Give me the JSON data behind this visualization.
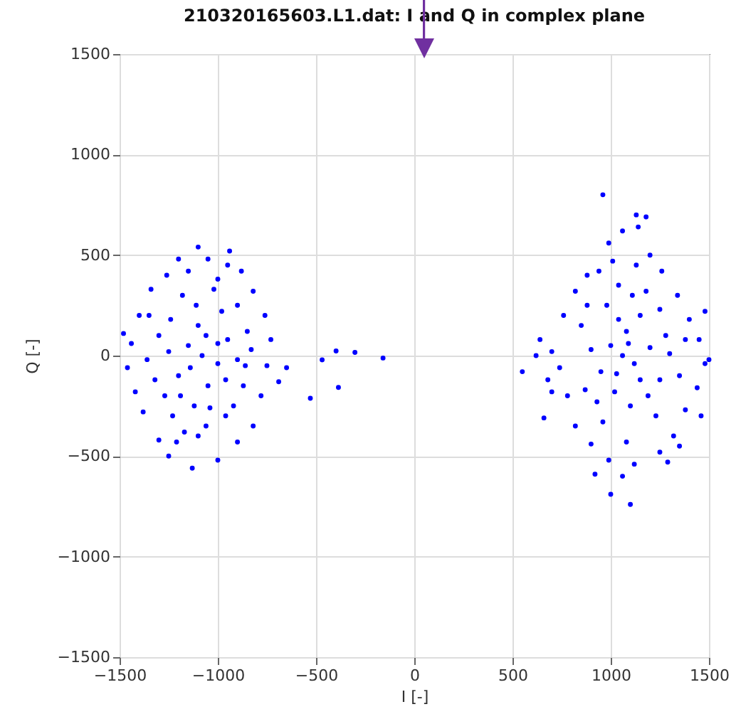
{
  "chart_data": {
    "type": "scatter",
    "title": "210320165603.L1.dat: I and Q in complex plane",
    "xlabel": "I [-]",
    "ylabel": "Q [-]",
    "xlim": [
      -1500,
      1500
    ],
    "xticks": [
      -1500,
      -1000,
      -500,
      0,
      500,
      1000,
      1500
    ],
    "ylim": [
      -1500,
      1500
    ],
    "yticks": [
      -1500,
      -1000,
      -500,
      0,
      500,
      1000,
      1500
    ],
    "grid": true,
    "marker": "circle",
    "series": [
      {
        "color": "#0000ff",
        "x": [
          -1080,
          -1150,
          -1000,
          -1200,
          -950,
          -1100,
          -1050,
          -1250,
          -900,
          -1120,
          -980,
          -1300,
          -1320,
          -850,
          -870,
          -1180,
          -1020,
          -1230,
          -960,
          -1100,
          -1150,
          -1050,
          -1200,
          -1260,
          -1340,
          -1400,
          -1440,
          -1460,
          -1420,
          -1380,
          -1300,
          -1250,
          -1130,
          -1000,
          -900,
          -820,
          -780,
          -750,
          -730,
          -760,
          -820,
          -880,
          -950,
          -900,
          -830,
          -1480,
          -1360,
          -1350,
          -1060,
          -1000,
          -1140,
          -1040,
          -1190,
          -1270,
          -1240,
          -960,
          -1110,
          -920,
          -860,
          -1000,
          -1060,
          -1170,
          -1210,
          -940,
          -1100,
          -469,
          -398,
          -302,
          -159,
          -386,
          -529,
          -650,
          -690,
          1060,
          1000,
          1120,
          1080,
          950,
          1150,
          1020,
          1200,
          900,
          1100,
          980,
          1250,
          1280,
          870,
          850,
          1180,
          1040,
          1230,
          960,
          1080,
          1130,
          1010,
          1200,
          1260,
          1340,
          1400,
          1450,
          1480,
          1440,
          1380,
          1320,
          1250,
          1120,
          990,
          900,
          820,
          780,
          740,
          700,
          640,
          620,
          680,
          760,
          820,
          880,
          940,
          990,
          1060,
          1140,
          1180,
          1130,
          960,
          1000,
          1100,
          550,
          660,
          700,
          1480,
          1500,
          1460,
          1350,
          1290,
          1060,
          920,
          1300,
          1350,
          1380,
          1150,
          1030,
          1090,
          1190,
          930,
          880,
          1040,
          1250,
          1110
        ],
        "values": [
          0,
          50,
          -40,
          -100,
          80,
          150,
          -150,
          20,
          -20,
          -250,
          220,
          100,
          -120,
          120,
          -150,
          300,
          330,
          -300,
          -300,
          -400,
          420,
          480,
          480,
          400,
          330,
          200,
          60,
          -60,
          -180,
          -280,
          -420,
          -500,
          -560,
          -520,
          -430,
          -350,
          -200,
          -50,
          80,
          200,
          320,
          420,
          450,
          250,
          30,
          110,
          -20,
          200,
          100,
          60,
          -60,
          -260,
          -200,
          -200,
          180,
          -120,
          250,
          -250,
          -50,
          380,
          -350,
          -380,
          -430,
          520,
          540,
          -21,
          23,
          16,
          -12,
          -158,
          -212,
          -60,
          -130,
          0,
          50,
          -40,
          120,
          -80,
          200,
          -180,
          40,
          30,
          -250,
          250,
          -120,
          100,
          -170,
          150,
          320,
          350,
          -300,
          -330,
          -430,
          450,
          470,
          500,
          420,
          300,
          180,
          80,
          -40,
          -160,
          -270,
          -400,
          -480,
          -540,
          -520,
          -440,
          -350,
          -200,
          -60,
          20,
          80,
          0,
          -120,
          200,
          320,
          400,
          420,
          560,
          620,
          640,
          690,
          700,
          800,
          -690,
          -740,
          -80,
          -310,
          -180,
          220,
          -20,
          -300,
          -450,
          -530,
          -600,
          -590,
          10,
          -100,
          80,
          -120,
          -90,
          60,
          -200,
          -230,
          250,
          180,
          230,
          300
        ]
      }
    ]
  }
}
